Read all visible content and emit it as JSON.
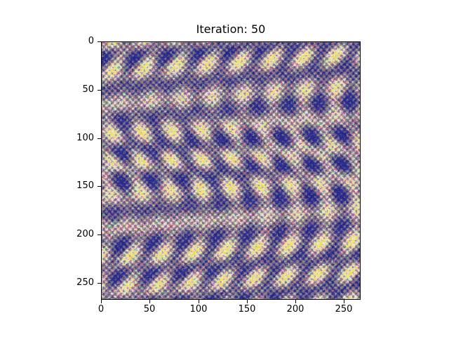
{
  "title": "Iteration: 50",
  "image": {
    "description_colors": [
      "#f2e35a",
      "#2b2b9c",
      "#e84a4a",
      "#58c46a",
      "#c35be0",
      "#ffffff",
      "#9a9a9a"
    ]
  },
  "axes": {
    "y_ticks": [
      "0",
      "50",
      "100",
      "150",
      "200",
      "250"
    ],
    "x_ticks": [
      "0",
      "50",
      "100",
      "150",
      "200",
      "250"
    ],
    "y_range": [
      0,
      267
    ],
    "x_range": [
      0,
      267
    ]
  }
}
